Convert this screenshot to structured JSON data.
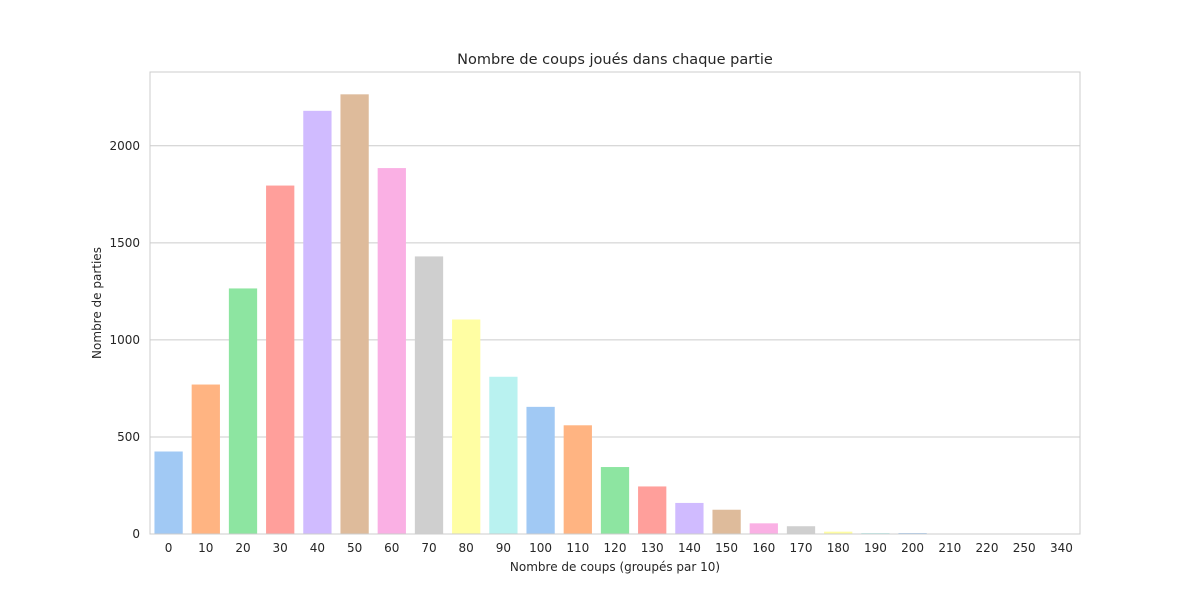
{
  "chart_data": {
    "type": "bar",
    "title": "Nombre de coups joués dans chaque partie",
    "xlabel": "Nombre de coups (groupés par 10)",
    "ylabel": "Nombre de parties",
    "categories": [
      "0",
      "10",
      "20",
      "30",
      "40",
      "50",
      "60",
      "70",
      "80",
      "90",
      "100",
      "110",
      "120",
      "130",
      "140",
      "150",
      "160",
      "170",
      "180",
      "190",
      "200",
      "210",
      "220",
      "250",
      "340"
    ],
    "values": [
      425,
      770,
      1265,
      1795,
      2180,
      2265,
      1885,
      1430,
      1105,
      810,
      655,
      560,
      345,
      245,
      160,
      125,
      55,
      40,
      12,
      5,
      5,
      2,
      2,
      1,
      1
    ],
    "ylim": [
      0,
      2380
    ],
    "yticks": [
      0,
      500,
      1000,
      1500,
      2000
    ],
    "grid": "horizontal",
    "palette": [
      "#a1c9f4",
      "#ffb482",
      "#8de5a1",
      "#ff9f9b",
      "#d0bbff",
      "#debb9b",
      "#fab0e4",
      "#cfcfcf",
      "#fffea3",
      "#b9f2f0"
    ],
    "colors": {
      "grid": "#cccccc",
      "frame": "#cccccc",
      "text": "#262626",
      "background": "#ffffff"
    }
  }
}
